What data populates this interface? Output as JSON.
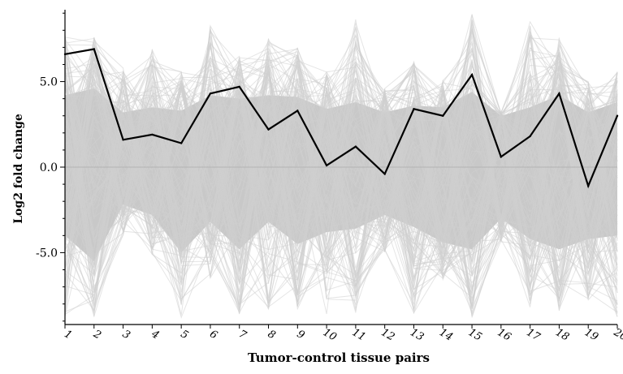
{
  "chart_data": {
    "type": "line",
    "title": "",
    "xlabel": "Tumor-control tissue pairs",
    "ylabel": "Log2 fold change",
    "x": [
      1,
      2,
      3,
      4,
      5,
      6,
      7,
      8,
      9,
      10,
      11,
      12,
      13,
      14,
      15,
      16,
      17,
      18,
      19,
      20
    ],
    "x_tick_labels": [
      "1",
      "2",
      "3",
      "4",
      "5",
      "6",
      "7",
      "8",
      "9",
      "10",
      "11",
      "12",
      "13",
      "14",
      "15",
      "16",
      "17",
      "18",
      "19",
      "20"
    ],
    "y_ticks": [
      5.0,
      0.0,
      -5.0
    ],
    "y_tick_labels": [
      "5.0",
      "0.0",
      "-5.0"
    ],
    "xlim": [
      1,
      20
    ],
    "ylim": [
      -9.2,
      9.2
    ],
    "grid": false,
    "legend": false,
    "series": [
      {
        "values": [
          6.6,
          6.9,
          1.6,
          1.9,
          1.4,
          4.3,
          4.7,
          2.2,
          3.3,
          0.1,
          1.2,
          -0.4,
          3.4,
          3.0,
          5.4,
          0.6,
          1.8,
          4.3,
          -1.1,
          3.0
        ],
        "color": "#000000"
      }
    ],
    "background_profiles": {
      "color": "#c8c8c8",
      "description_visible": false,
      "band_upper": [
        4.2,
        4.6,
        3.2,
        3.5,
        3.3,
        4.2,
        4.0,
        4.2,
        4.1,
        3.4,
        3.8,
        3.2,
        3.6,
        3.5,
        4.4,
        3.0,
        3.5,
        4.2,
        3.2,
        3.8
      ],
      "band_lower": [
        -4.0,
        -5.5,
        -2.2,
        -2.8,
        -5.0,
        -3.2,
        -4.8,
        -3.2,
        -4.5,
        -3.8,
        -3.6,
        -2.8,
        -3.5,
        -4.4,
        -4.8,
        -3.0,
        -4.2,
        -4.8,
        -4.2,
        -4.0
      ],
      "upper_extremes": [
        7.8,
        7.6,
        5.8,
        7.0,
        5.8,
        8.4,
        6.6,
        7.6,
        7.0,
        5.6,
        8.8,
        4.6,
        6.2,
        5.2,
        9.0,
        3.2,
        8.8,
        7.6,
        5.0,
        5.6
      ],
      "lower_extremes": [
        -9.0,
        -8.8,
        -4.0,
        -5.2,
        -8.8,
        -6.6,
        -8.6,
        -8.4,
        -8.4,
        -8.6,
        -8.8,
        -5.0,
        -8.6,
        -6.6,
        -8.8,
        -4.4,
        -8.2,
        -8.4,
        -7.8,
        -8.8
      ]
    }
  }
}
